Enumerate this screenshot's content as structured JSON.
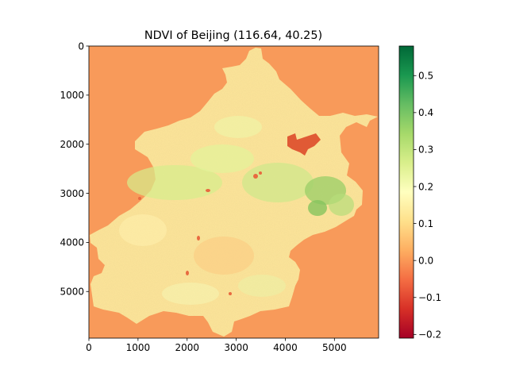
{
  "chart_data": {
    "type": "heatmap",
    "title": "NDVI of Beijing  (116.64, 40.25)",
    "xlabel": "",
    "ylabel": "",
    "xlim": [
      0,
      5900
    ],
    "ylim": [
      5950,
      0
    ],
    "x_ticks": [
      0,
      1000,
      2000,
      3000,
      4000,
      5000
    ],
    "y_ticks": [
      0,
      1000,
      2000,
      3000,
      4000,
      5000
    ],
    "x_tick_labels": [
      "0",
      "1000",
      "2000",
      "3000",
      "4000",
      "5000"
    ],
    "y_tick_labels": [
      "0",
      "1000",
      "2000",
      "3000",
      "4000",
      "5000"
    ],
    "colorbar": {
      "colormap": "RdYlGn",
      "vmin": -0.21,
      "vmax": 0.58,
      "ticks": [
        -0.2,
        -0.1,
        0.0,
        0.1,
        0.2,
        0.3,
        0.4,
        0.5
      ],
      "tick_labels": [
        "−0.2",
        "−0.1",
        "0.0",
        "0.1",
        "0.2",
        "0.3",
        "0.4",
        "0.5"
      ],
      "stops": [
        "#a50026",
        "#d73027",
        "#f46d43",
        "#fdae61",
        "#fee08b",
        "#ffffbf",
        "#d9ef8b",
        "#a6d96a",
        "#66bd63",
        "#1a9850",
        "#006837"
      ]
    },
    "background_value": 0.02,
    "background_color": "#f89a5a",
    "region_base_color": "#fde59a",
    "grid": false,
    "legend": "none"
  }
}
